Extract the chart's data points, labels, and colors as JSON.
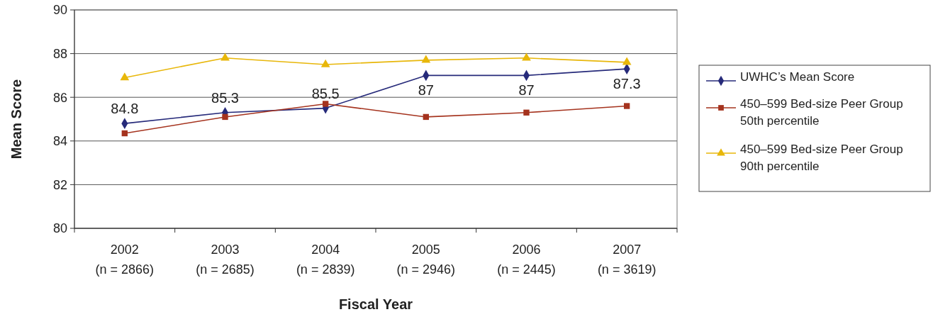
{
  "chart_data": {
    "type": "line",
    "xlabel": "Fiscal Year",
    "ylabel": "Mean Score",
    "categories": [
      "2002\n(n = 2866)",
      "2003\n(n = 2685)",
      "2004\n(n = 2839)",
      "2005\n(n = 2946)",
      "2006\n(n = 2445)",
      "2007\n(n = 3619)"
    ],
    "series": [
      {
        "name": "UWHC’s Mean Score",
        "color": "#262a7a",
        "marker": "diamond",
        "values": [
          84.8,
          85.3,
          85.5,
          87,
          87,
          87.3
        ],
        "value_labels": [
          "84.8",
          "85.3",
          "85.5",
          "87",
          "87",
          "87.3"
        ]
      },
      {
        "name": "450–599 Bed-size Peer Group\n50th percentile",
        "color": "#a5331e",
        "marker": "square",
        "values": [
          84.35,
          85.1,
          85.7,
          85.1,
          85.3,
          85.6
        ]
      },
      {
        "name": "450–599 Bed-size Peer Group\n90th percentile",
        "color": "#e8b70a",
        "marker": "triangle",
        "values": [
          86.9,
          87.8,
          87.5,
          87.7,
          87.8,
          87.6
        ]
      }
    ],
    "ylim": [
      80,
      90
    ],
    "yticks": [
      80,
      82,
      84,
      86,
      88,
      90
    ],
    "grid": "y",
    "legend": "right"
  }
}
